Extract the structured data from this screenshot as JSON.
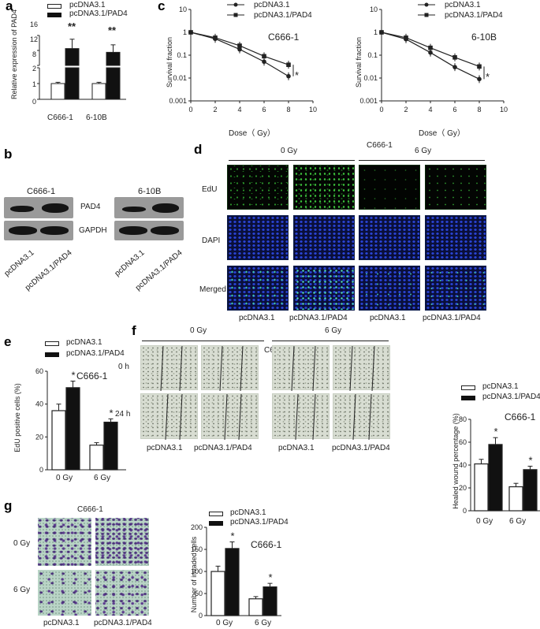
{
  "panels": {
    "a": {
      "label": "a",
      "legend": [
        "pcDNA3.1",
        "pcDNA3.1/PAD4"
      ],
      "ylabel": "Relative expression of PAD4",
      "yticks_top": [
        "8",
        "12",
        "16"
      ],
      "yticks_bottom": [
        "0",
        "1",
        "2"
      ],
      "categories": [
        "C666-1",
        "6-10B"
      ],
      "sig": [
        "**",
        "**"
      ]
    },
    "b": {
      "label": "b",
      "cell_lines": [
        "C666-1",
        "6-10B"
      ],
      "proteins": [
        "PAD4",
        "GAPDH"
      ],
      "lanes": [
        "pcDNA3.1",
        "pcDNA3.1/PAD4",
        "pcDNA3.1",
        "pcDNA3.1/PAD4"
      ]
    },
    "c": {
      "label": "c",
      "legend": [
        "pcDNA3.1",
        "pcDNA3.1/PAD4"
      ],
      "ylabel": "Survival fraction",
      "xlabel": "Dose（ Gy）",
      "plots": [
        {
          "cell_line": "C666-1",
          "sig": "*"
        },
        {
          "cell_line": "6-10B",
          "sig": "*"
        }
      ],
      "xticks": [
        "0",
        "2",
        "4",
        "6",
        "8",
        "10"
      ],
      "yticks": [
        "10",
        "1",
        "0.1",
        "0.01",
        "0.001"
      ]
    },
    "d": {
      "label": "d",
      "cell_line": "C666-1",
      "doses": [
        "0 Gy",
        "6 Gy"
      ],
      "rows": [
        "EdU",
        "DAPI",
        "Merged"
      ],
      "columns": [
        "pcDNA3.1",
        "pcDNA3.1/PAD4",
        "pcDNA3.1",
        "pcDNA3.1/PAD4"
      ]
    },
    "e": {
      "label": "e",
      "legend": [
        "pcDNA3.1",
        "pcDNA3.1/PAD4"
      ],
      "title": "C666-1",
      "ylabel": "EdU positive cells (%)",
      "yticks": [
        "0",
        "20",
        "40",
        "60"
      ],
      "categories": [
        "0 Gy",
        "6 Gy"
      ],
      "sig": [
        "*",
        "*"
      ]
    },
    "f": {
      "label": "f",
      "cell_line": "C666-1",
      "doses": [
        "0 Gy",
        "6 Gy"
      ],
      "times": [
        "0 h",
        "24 h"
      ],
      "columns": [
        "pcDNA3.1",
        "pcDNA3.1/PAD4",
        "pcDNA3.1",
        "pcDNA3.1/PAD4"
      ],
      "chart": {
        "legend": [
          "pcDNA3.1",
          "pcDNA3.1/PAD4"
        ],
        "title": "C666-1",
        "ylabel": "Healed wound percentage (%)",
        "yticks": [
          "0",
          "20",
          "40",
          "60",
          "80"
        ],
        "categories": [
          "0 Gy",
          "6 Gy"
        ],
        "sig": [
          "*",
          "*"
        ]
      }
    },
    "g": {
      "label": "g",
      "cell_line": "C666-1",
      "rows": [
        "0 Gy",
        "6 Gy"
      ],
      "columns": [
        "pcDNA3.1",
        "pcDNA3.1/PAD4"
      ],
      "chart": {
        "legend": [
          "pcDNA3.1",
          "pcDNA3.1/PAD4"
        ],
        "title": "C666-1",
        "ylabel": "Number of invaded cells",
        "yticks": [
          "0",
          "50",
          "100",
          "150",
          "200"
        ],
        "categories": [
          "0 Gy",
          "6 Gy"
        ],
        "sig": [
          "*",
          "*"
        ]
      }
    }
  },
  "chart_data": [
    {
      "type": "bar",
      "panel": "a",
      "categories": [
        "C666-1",
        "6-10B"
      ],
      "series": [
        {
          "name": "pcDNA3.1",
          "values": [
            1.0,
            1.0
          ],
          "errors": [
            0.08,
            0.08
          ]
        },
        {
          "name": "pcDNA3.1/PAD4",
          "values": [
            12.5,
            11.5
          ],
          "errors": [
            2.5,
            2.0
          ]
        }
      ],
      "ylabel": "Relative expression of PAD4",
      "ylim": [
        0,
        16
      ],
      "axis_break": [
        2,
        8
      ]
    },
    {
      "type": "line",
      "panel": "c",
      "title": "C666-1",
      "x": [
        0,
        2,
        4,
        6,
        8
      ],
      "series": [
        {
          "name": "pcDNA3.1",
          "values": [
            1,
            0.52,
            0.18,
            0.052,
            0.012
          ]
        },
        {
          "name": "pcDNA3.1/PAD4",
          "values": [
            1,
            0.58,
            0.26,
            0.09,
            0.038
          ]
        }
      ],
      "xlabel": "Dose（ Gy）",
      "ylabel": "Survival fraction",
      "xlim": [
        0,
        10
      ],
      "ylim": [
        0.001,
        10
      ],
      "yscale": "log"
    },
    {
      "type": "line",
      "panel": "c",
      "title": "6-10B",
      "x": [
        0,
        2,
        4,
        6,
        8
      ],
      "series": [
        {
          "name": "pcDNA3.1",
          "values": [
            1,
            0.5,
            0.13,
            0.03,
            0.009
          ]
        },
        {
          "name": "pcDNA3.1/PAD4",
          "values": [
            1,
            0.58,
            0.21,
            0.08,
            0.032
          ]
        }
      ],
      "xlabel": "Dose（ Gy）",
      "ylabel": "Survival fraction",
      "xlim": [
        0,
        10
      ],
      "ylim": [
        0.001,
        10
      ],
      "yscale": "log"
    },
    {
      "type": "bar",
      "panel": "e",
      "title": "C666-1",
      "categories": [
        "0 Gy",
        "6 Gy"
      ],
      "series": [
        {
          "name": "pcDNA3.1",
          "values": [
            36,
            15
          ],
          "errors": [
            4,
            1.5
          ]
        },
        {
          "name": "pcDNA3.1/PAD4",
          "values": [
            50,
            29
          ],
          "errors": [
            4,
            2
          ]
        }
      ],
      "ylabel": "EdU positive cells (%)",
      "ylim": [
        0,
        60
      ]
    },
    {
      "type": "bar",
      "panel": "f",
      "title": "C666-1",
      "categories": [
        "0 Gy",
        "6 Gy"
      ],
      "series": [
        {
          "name": "pcDNA3.1",
          "values": [
            41,
            21
          ],
          "errors": [
            4,
            3
          ]
        },
        {
          "name": "pcDNA3.1/PAD4",
          "values": [
            58,
            36
          ],
          "errors": [
            6,
            3
          ]
        }
      ],
      "ylabel": "Healed wound percentage (%)",
      "ylim": [
        0,
        80
      ]
    },
    {
      "type": "bar",
      "panel": "g",
      "title": "C666-1",
      "categories": [
        "0 Gy",
        "6 Gy"
      ],
      "series": [
        {
          "name": "pcDNA3.1",
          "values": [
            100,
            38
          ],
          "errors": [
            12,
            5
          ]
        },
        {
          "name": "pcDNA3.1/PAD4",
          "values": [
            152,
            65
          ],
          "errors": [
            15,
            8
          ]
        }
      ],
      "ylabel": "Number of invaded cells",
      "ylim": [
        0,
        200
      ]
    }
  ]
}
